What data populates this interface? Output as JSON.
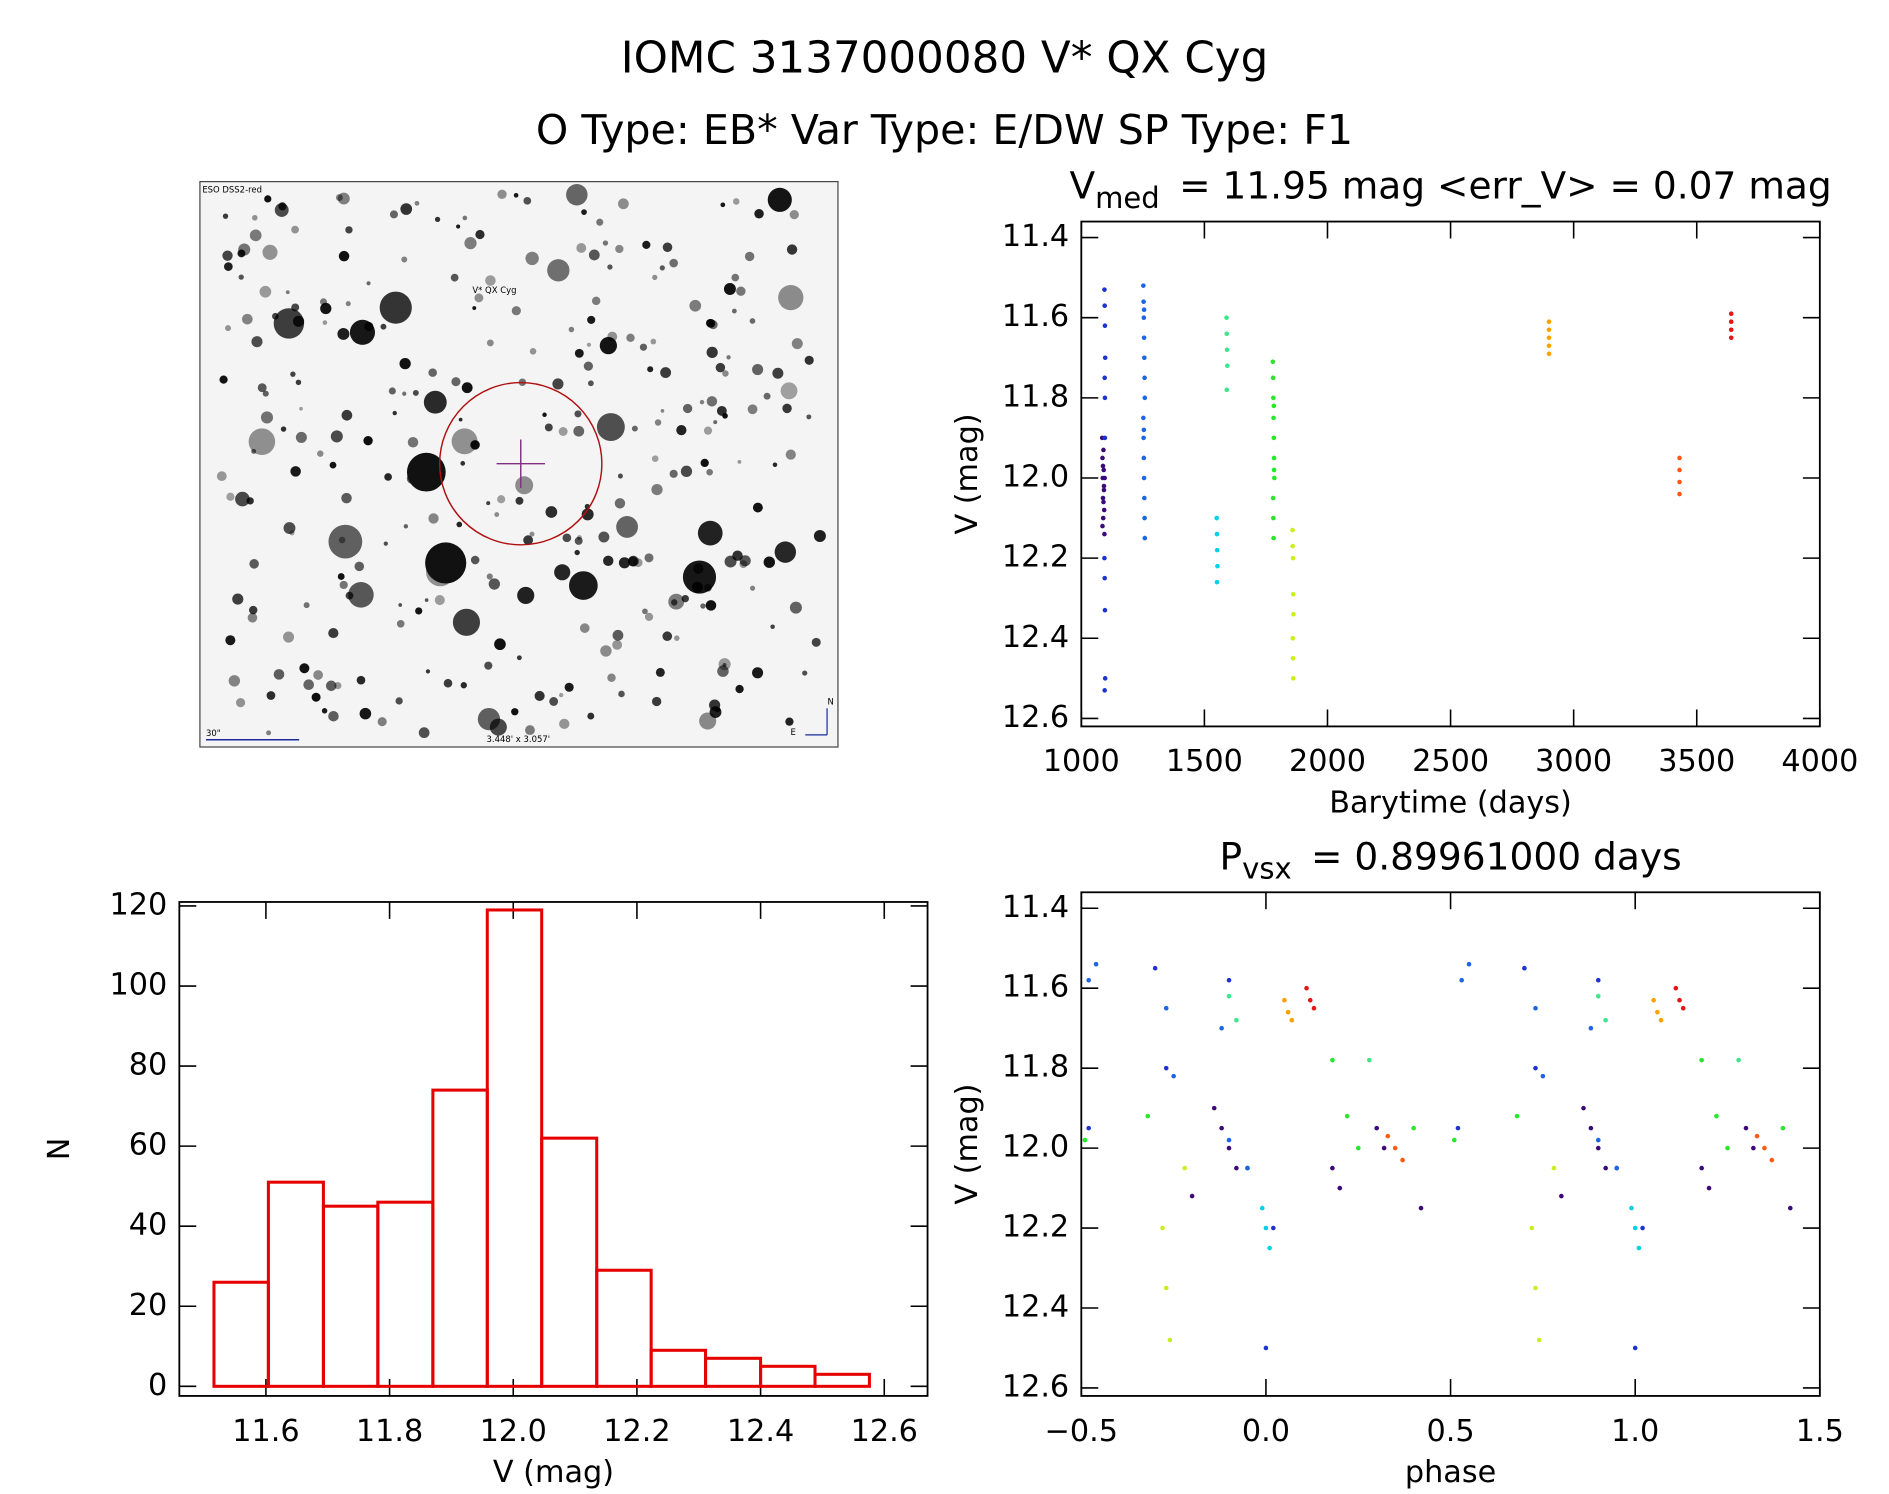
{
  "title": "IOMC 3137000080   V* QX Cyg",
  "subtitle": "O Type: EB*  Var Type: E/DW  SP Type: F1",
  "chart_data": [
    {
      "type": "image",
      "labels": [
        "ESO DSS2-red",
        "V* QX Cyg",
        "30\"",
        "3.448' x 3.057'",
        "N",
        "E"
      ]
    },
    {
      "type": "scatter",
      "title": "V",
      "title_sub": "med",
      "title_rest": "= 11.95 mag <err_V> = 0.07 mag",
      "xlabel": "Barytime (days)",
      "ylabel": "V (mag)",
      "xlim": [
        1000,
        4000
      ],
      "xticks": [
        1000,
        1500,
        2000,
        2500,
        3000,
        3500,
        4000
      ],
      "ylim": [
        12.62,
        11.36
      ],
      "yticks": [
        11.4,
        11.6,
        11.8,
        {
          "value": 12,
          "label": "12.0"
        },
        12.2,
        12.4,
        12.6
      ],
      "series": [
        {
          "color": "#3c0a78",
          "x": [
            1085,
            1086,
            1087,
            1088,
            1089,
            1090,
            1091,
            1092,
            1093,
            1094,
            1095,
            1086,
            1088,
            1090,
            1092
          ],
          "values": [
            11.9,
            11.95,
            12.0,
            12.05,
            12.1,
            11.93,
            11.98,
            12.03,
            12.08,
            12.14,
            12.0,
            12.12,
            11.97,
            12.06,
            12.02
          ]
        },
        {
          "color": "#1e32d2",
          "x": [
            1094,
            1095,
            1096,
            1097,
            1095,
            1096,
            1094,
            1095,
            1096,
            1097,
            1095,
            1096
          ],
          "values": [
            11.53,
            11.57,
            11.62,
            11.7,
            11.75,
            11.8,
            12.2,
            12.25,
            12.33,
            12.5,
            12.53,
            11.9
          ]
        },
        {
          "color": "#1e64e6",
          "x": [
            1252,
            1253,
            1254,
            1255,
            1256,
            1257,
            1258,
            1252,
            1253,
            1254,
            1255,
            1256,
            1257,
            1258,
            1255,
            1254
          ],
          "values": [
            11.52,
            11.56,
            11.6,
            11.65,
            11.7,
            11.75,
            11.8,
            11.85,
            11.9,
            11.95,
            12.0,
            12.05,
            12.1,
            12.15,
            11.58,
            11.88
          ]
        },
        {
          "color": "#00d2e6",
          "x": [
            1550,
            1551,
            1552,
            1553,
            1551
          ],
          "values": [
            12.1,
            12.14,
            12.18,
            12.22,
            12.26
          ]
        },
        {
          "color": "#3ce68c",
          "x": [
            1590,
            1591,
            1592,
            1593,
            1591
          ],
          "values": [
            11.6,
            11.64,
            11.68,
            11.72,
            11.78
          ]
        },
        {
          "color": "#28e628",
          "x": [
            1778,
            1779,
            1780,
            1781,
            1782,
            1783,
            1784,
            1779,
            1780,
            1781,
            1782,
            1783
          ],
          "values": [
            11.71,
            11.75,
            11.8,
            11.85,
            11.9,
            11.95,
            12.0,
            12.05,
            12.1,
            12.15,
            11.82,
            11.98
          ]
        },
        {
          "color": "#c8f01e",
          "x": [
            1858,
            1859,
            1860,
            1861,
            1862,
            1859,
            1860,
            1861
          ],
          "values": [
            12.13,
            12.17,
            12.2,
            12.29,
            12.34,
            12.4,
            12.45,
            12.5
          ]
        },
        {
          "color": "#ffa000",
          "x": [
            2900,
            2900,
            2900,
            2900,
            2900
          ],
          "values": [
            11.61,
            11.63,
            11.65,
            11.67,
            11.69
          ]
        },
        {
          "color": "#ff5a14",
          "x": [
            3430,
            3430,
            3430,
            3430
          ],
          "values": [
            11.95,
            11.98,
            12.01,
            12.04
          ]
        },
        {
          "color": "#e61414",
          "x": [
            3640,
            3640,
            3640,
            3640
          ],
          "values": [
            11.59,
            11.61,
            11.63,
            11.65
          ]
        }
      ]
    },
    {
      "type": "histogram",
      "xlabel": "V (mag)",
      "ylabel": "N",
      "color": "#e60000",
      "bins": [
        11.516,
        11.604,
        11.693,
        11.781,
        11.87,
        11.958,
        12.046,
        12.135,
        12.223,
        12.311,
        12.4,
        12.488,
        12.576
      ],
      "values": [
        26,
        51,
        45,
        46,
        74,
        119,
        62,
        29,
        9,
        7,
        5,
        3
      ],
      "xlim": [
        11.46,
        12.67
      ],
      "xticks": [
        11.6,
        11.8,
        {
          "value": 12,
          "label": "12.0"
        },
        12.2,
        12.4,
        12.6
      ],
      "ylim": [
        -2.4,
        121
      ],
      "yticks": [
        0,
        20,
        40,
        60,
        80,
        100,
        120
      ]
    },
    {
      "type": "scatter",
      "title": "P",
      "title_sub": "vsx",
      "title_rest": "= 0.89961000 days",
      "xlabel": "phase",
      "ylabel": "V (mag)",
      "xlim": [
        -0.5,
        1.5
      ],
      "xticks": [
        {
          "value": -0.5,
          "label": "−0.5"
        },
        {
          "value": 0,
          "label": "0.0"
        },
        0.5,
        {
          "value": 1,
          "label": "1.0"
        },
        1.5
      ],
      "ylim": [
        12.62,
        11.36
      ],
      "yticks": [
        11.4,
        11.6,
        11.8,
        {
          "value": 12,
          "label": "12.0"
        },
        12.2,
        12.4,
        12.6
      ],
      "series": [
        {
          "color": "#3c0a78",
          "x": [
            -0.14,
            -0.12,
            -0.1,
            -0.08,
            -0.2,
            0.18,
            0.2,
            0.3,
            0.32,
            0.42,
            0.86,
            0.88,
            0.9,
            0.92,
            0.8,
            1.18,
            1.2,
            1.3,
            1.32,
            1.42
          ],
          "values": [
            11.9,
            11.95,
            12.0,
            12.05,
            12.12,
            12.05,
            12.1,
            11.95,
            12.0,
            12.15,
            11.9,
            11.95,
            12.0,
            12.05,
            12.12,
            12.05,
            12.1,
            11.95,
            12.0,
            12.15
          ]
        },
        {
          "color": "#1e32d2",
          "x": [
            -0.48,
            -0.3,
            -0.27,
            -0.1,
            -0.05,
            0.0,
            0.02,
            0.52,
            0.7,
            0.73,
            0.9,
            0.95,
            1.0,
            1.02
          ],
          "values": [
            11.95,
            11.55,
            11.8,
            11.58,
            12.05,
            12.5,
            12.2,
            11.95,
            11.55,
            11.8,
            11.58,
            12.05,
            12.5,
            12.2
          ]
        },
        {
          "color": "#1e64e6",
          "x": [
            -0.48,
            -0.46,
            -0.27,
            -0.25,
            -0.12,
            -0.1,
            -0.05,
            0.53,
            0.55,
            0.73,
            0.75,
            0.88,
            0.9,
            0.95
          ],
          "values": [
            11.58,
            11.54,
            11.65,
            11.82,
            11.7,
            11.98,
            12.05,
            11.58,
            11.54,
            11.65,
            11.82,
            11.7,
            11.98,
            12.05
          ]
        },
        {
          "color": "#00d2e6",
          "x": [
            -0.01,
            0.0,
            0.01,
            0.99,
            1.0,
            1.01
          ],
          "values": [
            12.15,
            12.2,
            12.25,
            12.15,
            12.2,
            12.25
          ]
        },
        {
          "color": "#3ce68c",
          "x": [
            -0.1,
            -0.08,
            0.28,
            0.9,
            0.92,
            1.28
          ],
          "values": [
            11.62,
            11.68,
            11.78,
            11.62,
            11.68,
            11.78
          ]
        },
        {
          "color": "#28e628",
          "x": [
            -0.49,
            -0.32,
            0.18,
            0.22,
            0.25,
            0.4,
            0.51,
            0.68,
            1.18,
            1.22,
            1.25,
            1.4
          ],
          "values": [
            11.98,
            11.92,
            11.78,
            11.92,
            12.0,
            11.95,
            11.98,
            11.92,
            11.78,
            11.92,
            12.0,
            11.95
          ]
        },
        {
          "color": "#c8f01e",
          "x": [
            -0.28,
            -0.27,
            -0.26,
            -0.22,
            0.72,
            0.73,
            0.74,
            0.78
          ],
          "values": [
            12.2,
            12.35,
            12.48,
            12.05,
            12.2,
            12.35,
            12.48,
            12.05
          ]
        },
        {
          "color": "#ffa000",
          "x": [
            0.05,
            0.06,
            0.07,
            1.05,
            1.06,
            1.07
          ],
          "values": [
            11.63,
            11.66,
            11.68,
            11.63,
            11.66,
            11.68
          ]
        },
        {
          "color": "#ff5a14",
          "x": [
            0.33,
            0.35,
            0.37,
            1.33,
            1.35,
            1.37
          ],
          "values": [
            11.97,
            12.0,
            12.03,
            11.97,
            12.0,
            12.03
          ]
        },
        {
          "color": "#e61414",
          "x": [
            0.11,
            0.12,
            0.13,
            1.11,
            1.12,
            1.13
          ],
          "values": [
            11.6,
            11.63,
            11.65,
            11.6,
            11.63,
            11.65
          ]
        }
      ]
    }
  ]
}
